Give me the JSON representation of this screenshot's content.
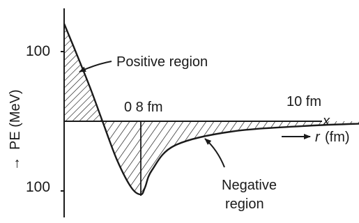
{
  "chart_data": {
    "type": "line",
    "ylabel": "PE (MeV)",
    "ylabel_arrow": "→",
    "xlabel_arrow": "→",
    "xlabel_var": "r",
    "xlabel_unit": "(fm)",
    "x_axis_end_label": "x",
    "y_ticks": [
      {
        "value": 100,
        "label": "100"
      },
      {
        "value": -100,
        "label": "100"
      }
    ],
    "x_ticks": [
      {
        "value": 0.8,
        "label": "0 8 fm"
      },
      {
        "value": 10,
        "label": "10 fm"
      }
    ],
    "annotations": {
      "positive_region": "Positive region",
      "negative_region_line1": "Negative",
      "negative_region_line2": "region"
    },
    "ylim": [
      -120,
      140
    ],
    "curve_points": [
      {
        "x": 0.0,
        "y": 140
      },
      {
        "x": 0.12,
        "y": 100
      },
      {
        "x": 0.28,
        "y": 45
      },
      {
        "x": 0.4,
        "y": 0
      },
      {
        "x": 0.55,
        "y": -55
      },
      {
        "x": 0.7,
        "y": -95
      },
      {
        "x": 0.8,
        "y": -105
      },
      {
        "x": 0.95,
        "y": -95
      },
      {
        "x": 1.2,
        "y": -70
      },
      {
        "x": 2.0,
        "y": -35
      },
      {
        "x": 4.0,
        "y": -15
      },
      {
        "x": 7.0,
        "y": -6
      },
      {
        "x": 10.0,
        "y": -2
      }
    ],
    "fills": {
      "positive_region": "hatched",
      "negative_region": "hatched"
    },
    "colors": {
      "ink": "#1a1a1a",
      "background": "#ffffff"
    }
  }
}
